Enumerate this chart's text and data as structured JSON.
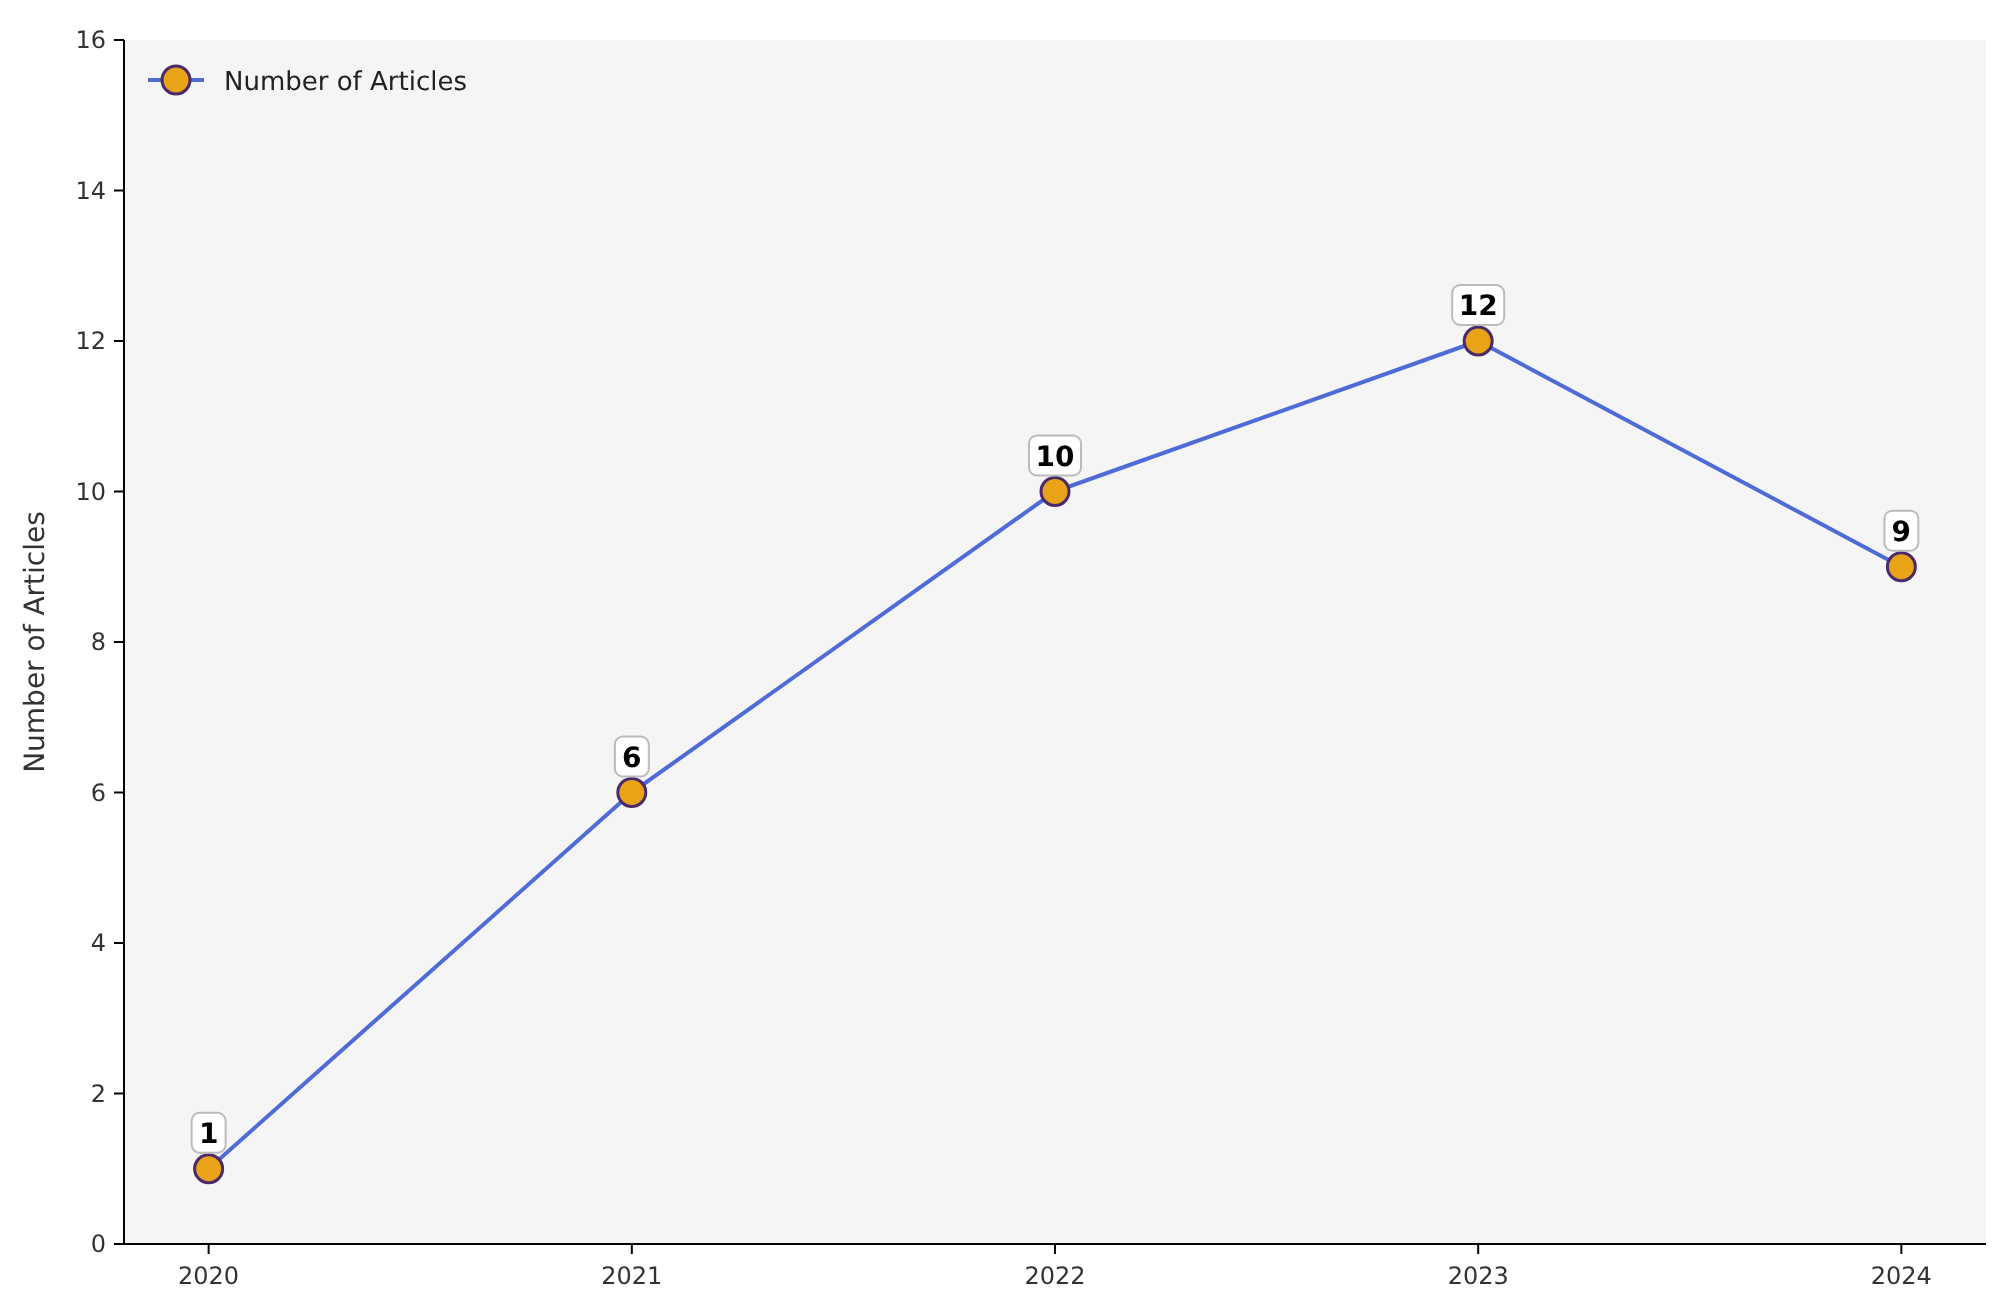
{
  "chart_data": {
    "type": "line",
    "ylabel": "Number of Articles",
    "categories": [
      "2020",
      "2021",
      "2022",
      "2023",
      "2024"
    ],
    "series": [
      {
        "name": "Number of Articles",
        "color": "#4f6bd8",
        "values": [
          1,
          6,
          10,
          12,
          9
        ]
      }
    ],
    "ylim": [
      0,
      16
    ],
    "yticks": [
      0,
      2,
      4,
      6,
      8,
      10,
      12,
      14,
      16
    ],
    "grid": false,
    "legend": "top left",
    "marker": "circle",
    "line_style": "solid",
    "data_labels": true
  }
}
